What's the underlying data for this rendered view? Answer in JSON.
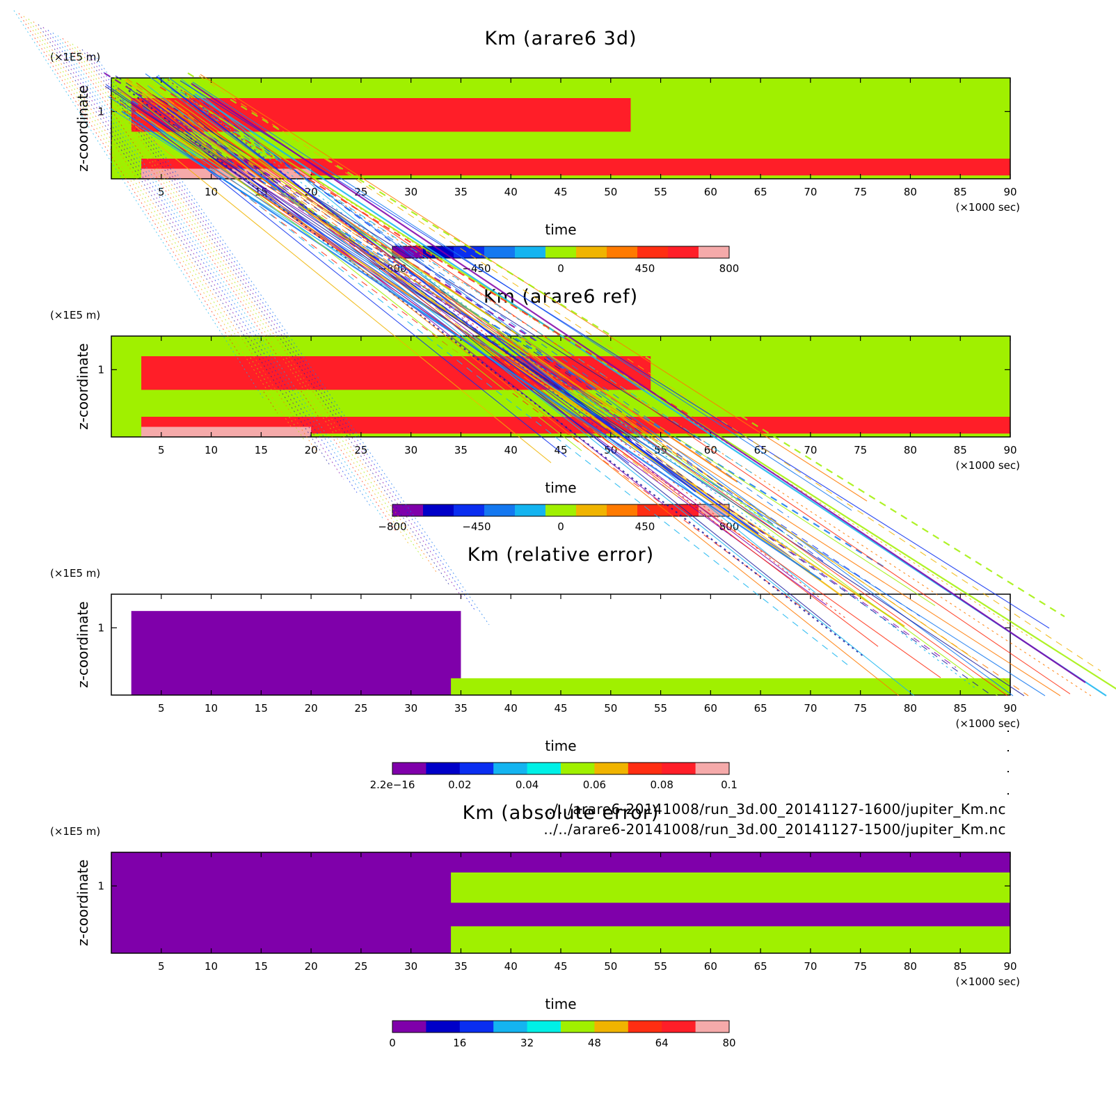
{
  "colors": {
    "scale": [
      "#7f00aa",
      "#0000c8",
      "#0a2ef0",
      "#1478f0",
      "#14b4f0",
      "#00f0e6",
      "#a0f000",
      "#f0b400",
      "#ff7a00",
      "#ff2e12",
      "#ff1e28",
      "#f5aaaa"
    ],
    "frame": "#000000",
    "background": "#ffffff"
  },
  "overlay_paths": [
    "../../arare6-20141008/run_3d.00_20141127-1600/jupiter_Km.nc",
    "../../arare6-20141008/run_3d.00_20141127-1500/jupiter_Km.nc"
  ],
  "chart_data": [
    {
      "type": "heatmap",
      "title": "Km (arare6 3d)",
      "xlabel": "time",
      "ylabel": "z-coordinate",
      "x_unit": "(×1000 sec)",
      "y_unit": "(×1E5 m)",
      "xlim": [
        0,
        90
      ],
      "ylim": [
        0,
        1.5
      ],
      "xticks": [
        "5",
        "10",
        "15",
        "20",
        "25",
        "30",
        "35",
        "40",
        "45",
        "50",
        "55",
        "60",
        "65",
        "70",
        "75",
        "80",
        "85",
        "90"
      ],
      "yticks": [
        "1"
      ],
      "colorbar": {
        "min": -800,
        "max": 800,
        "levels": 11,
        "ticks": [
          "−800",
          "−450",
          "0",
          "450",
          "800"
        ]
      },
      "regions": [
        {
          "value": 0,
          "x": [
            0,
            90
          ],
          "y": [
            0,
            1.5
          ]
        },
        {
          "value": 600,
          "x": [
            2,
            52
          ],
          "y": [
            0.7,
            1.2
          ]
        },
        {
          "value": 600,
          "x": [
            3,
            90
          ],
          "y": [
            0.05,
            0.3
          ]
        },
        {
          "value": 750,
          "x": [
            3,
            20
          ],
          "y": [
            0,
            0.15
          ]
        }
      ]
    },
    {
      "type": "heatmap",
      "title": "Km (arare6 ref)",
      "xlabel": "time",
      "ylabel": "z-coordinate",
      "x_unit": "(×1000 sec)",
      "y_unit": "(×1E5 m)",
      "xlim": [
        0,
        90
      ],
      "ylim": [
        0,
        1.5
      ],
      "xticks": [
        "5",
        "10",
        "15",
        "20",
        "25",
        "30",
        "35",
        "40",
        "45",
        "50",
        "55",
        "60",
        "65",
        "70",
        "75",
        "80",
        "85",
        "90"
      ],
      "yticks": [
        "1"
      ],
      "colorbar": {
        "min": -800,
        "max": 800,
        "levels": 11,
        "ticks": [
          "−800",
          "−450",
          "0",
          "450",
          "800"
        ]
      },
      "regions": [
        {
          "value": 0,
          "x": [
            0,
            90
          ],
          "y": [
            0,
            1.5
          ]
        },
        {
          "value": 600,
          "x": [
            3,
            54
          ],
          "y": [
            0.7,
            1.2
          ]
        },
        {
          "value": 600,
          "x": [
            3,
            90
          ],
          "y": [
            0.05,
            0.3
          ]
        },
        {
          "value": 750,
          "x": [
            3,
            20
          ],
          "y": [
            0,
            0.15
          ]
        }
      ]
    },
    {
      "type": "heatmap",
      "title": "Km (relative error)",
      "xlabel": "time",
      "ylabel": "z-coordinate",
      "x_unit": "(×1000 sec)",
      "y_unit": "(×1E5 m)",
      "xlim": [
        0,
        90
      ],
      "ylim": [
        0,
        1.5
      ],
      "xticks": [
        "5",
        "10",
        "15",
        "20",
        "25",
        "30",
        "35",
        "40",
        "45",
        "50",
        "55",
        "60",
        "65",
        "70",
        "75",
        "80",
        "85",
        "90"
      ],
      "yticks": [
        "1"
      ],
      "colorbar": {
        "min": 0,
        "max": 0.1,
        "levels": 10,
        "ticks": [
          "2.2e−16",
          "0.02",
          "0.04",
          "0.06",
          "0.08",
          "0.1"
        ]
      },
      "regions": [
        {
          "value": 0,
          "x": [
            2,
            35
          ],
          "y": [
            0,
            1.25
          ]
        },
        {
          "value": 0.05,
          "x": [
            34,
            90
          ],
          "y": [
            0,
            0.25
          ]
        }
      ]
    },
    {
      "type": "heatmap",
      "title": "Km (absolute error)",
      "xlabel": "time",
      "ylabel": "z-coordinate",
      "x_unit": "(×1000 sec)",
      "y_unit": "(×1E5 m)",
      "xlim": [
        0,
        90
      ],
      "ylim": [
        0,
        1.5
      ],
      "xticks": [
        "5",
        "10",
        "15",
        "20",
        "25",
        "30",
        "35",
        "40",
        "45",
        "50",
        "55",
        "60",
        "65",
        "70",
        "75",
        "80",
        "85",
        "90"
      ],
      "yticks": [
        "1"
      ],
      "colorbar": {
        "min": 0,
        "max": 80,
        "levels": 10,
        "ticks": [
          "0",
          "16",
          "32",
          "48",
          "64",
          "80"
        ]
      },
      "regions": [
        {
          "value": 0,
          "x": [
            0,
            90
          ],
          "y": [
            0,
            1.5
          ]
        },
        {
          "value": 40,
          "x": [
            34,
            90
          ],
          "y": [
            0.75,
            1.2
          ]
        },
        {
          "value": 40,
          "x": [
            34,
            90
          ],
          "y": [
            0.0,
            0.4
          ]
        }
      ]
    }
  ]
}
